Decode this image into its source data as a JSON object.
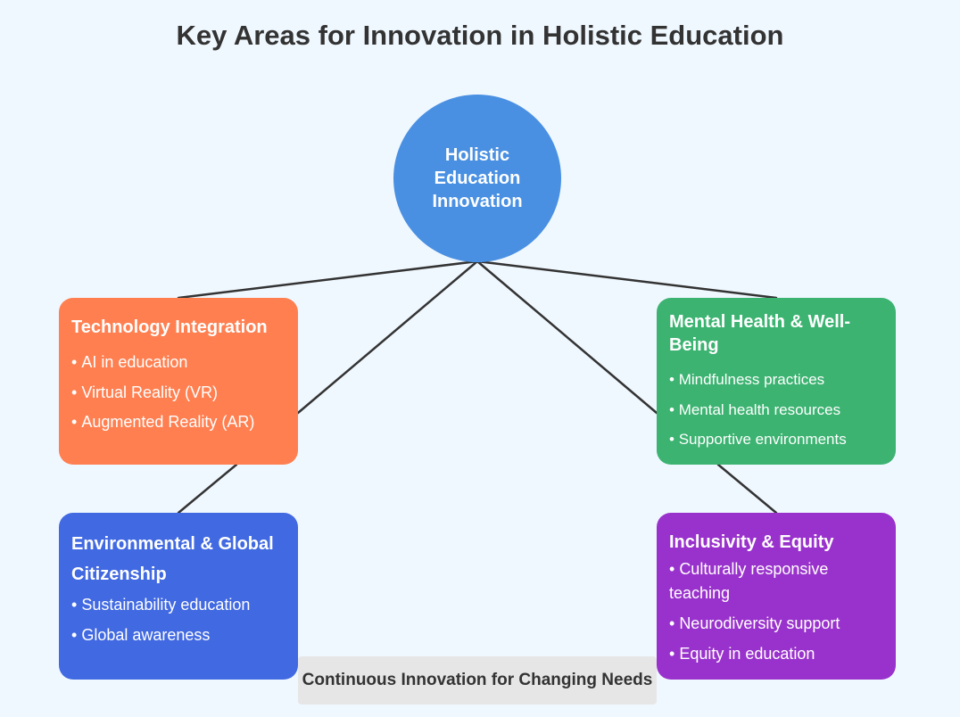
{
  "title": "Key Areas for Innovation in Holistic Education",
  "center": {
    "label": "Holistic Education Innovation",
    "color": "#4a90e2"
  },
  "areas": [
    {
      "title": "Technology Integration",
      "color": "#ff7f50",
      "items": [
        "AI in education",
        "Virtual Reality (VR)",
        "Augmented Reality (AR)"
      ]
    },
    {
      "title": "Mental Health & Well-Being",
      "color": "#3cb371",
      "items": [
        "Mindfulness practices",
        "Mental health resources",
        "Supportive environments"
      ]
    },
    {
      "title": "Environmental & Global Citizenship",
      "color": "#4169e1",
      "items": [
        "Sustainability education",
        "Global awareness"
      ]
    },
    {
      "title": "Inclusivity & Equity",
      "color": "#9932cc",
      "items": [
        "Culturally responsive teaching",
        "Neurodiversity support",
        "Equity in education"
      ]
    }
  ],
  "footer": "Continuous Innovation for Changing Needs"
}
